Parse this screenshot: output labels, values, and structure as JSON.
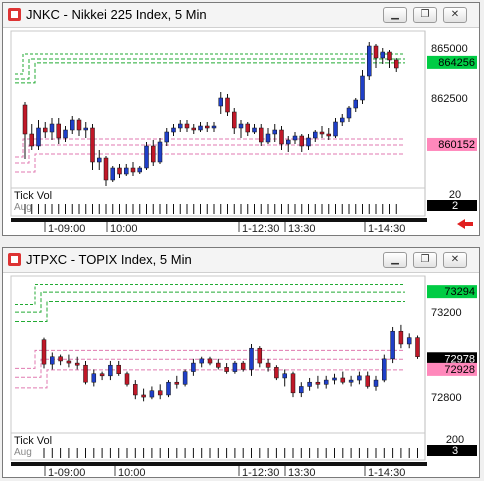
{
  "windows": [
    {
      "title": "JNKC - Nikkei 225 Index, 5 Min",
      "window_buttons": [
        "minimize",
        "restore",
        "close"
      ],
      "price_labels": [
        "865000",
        "862500"
      ],
      "badges": [
        {
          "text": "864256",
          "color": "#00cc44"
        },
        {
          "text": "860152",
          "color": "#ff88bb"
        }
      ],
      "volume_title": "Tick Vol",
      "volume_values": [
        "20",
        "2"
      ],
      "volume_sub": "Aug",
      "time_labels": [
        "1-09:00",
        "10:00",
        "1-12:30",
        "13:30",
        "1-14:30"
      ],
      "has_back_arrow": true
    },
    {
      "title": "JTPXC - TOPIX Index, 5 Min",
      "window_buttons": [
        "minimize",
        "restore",
        "close"
      ],
      "price_labels": [
        "73200",
        "72800"
      ],
      "badges": [
        {
          "text": "73294",
          "color": "#00cc44"
        },
        {
          "text": "72978",
          "color": "#000000"
        },
        {
          "text": "72928",
          "color": "#ff88bb"
        }
      ],
      "volume_title": "Tick Vol",
      "volume_values": [
        "200",
        "3"
      ],
      "volume_sub": "Aug",
      "time_labels": [
        "1-09:00",
        "10:00",
        "1-12:30",
        "13:30",
        "1-14:30"
      ],
      "has_back_arrow": false
    }
  ],
  "chart_data": [
    {
      "type": "candlestick",
      "title": "JNKC - Nikkei 225 Index, 5 Min",
      "y_ticks": [
        865000,
        862500
      ],
      "ylim": [
        858100,
        865850
      ],
      "green_levels": [
        864700,
        864450,
        864256
      ],
      "pink_levels": [
        860450,
        860152,
        859700
      ],
      "candles": [
        [
          862150,
          862300,
          859450,
          860700
        ],
        [
          860700,
          861200,
          859900,
          860100
        ],
        [
          860100,
          861400,
          859900,
          861000
        ],
        [
          861000,
          861300,
          860500,
          860800
        ],
        [
          860800,
          861500,
          860400,
          861200
        ],
        [
          861200,
          861500,
          860200,
          860500
        ],
        [
          860500,
          861100,
          860300,
          860900
        ],
        [
          860900,
          861600,
          860700,
          861400
        ],
        [
          861400,
          861500,
          860600,
          860900
        ],
        [
          860900,
          861300,
          860500,
          861000
        ],
        [
          861000,
          861200,
          858900,
          859300
        ],
        [
          859300,
          859900,
          858900,
          859500
        ],
        [
          859500,
          859600,
          858100,
          858400
        ],
        [
          858400,
          859100,
          858300,
          859000
        ],
        [
          859000,
          859200,
          858500,
          858700
        ],
        [
          858700,
          859200,
          858600,
          859000
        ],
        [
          859000,
          859300,
          858600,
          858800
        ],
        [
          858800,
          859100,
          858700,
          859000
        ],
        [
          859000,
          860300,
          858900,
          860100
        ],
        [
          860100,
          860400,
          859100,
          859300
        ],
        [
          859300,
          860500,
          859200,
          860300
        ],
        [
          860300,
          861000,
          860100,
          860800
        ],
        [
          860800,
          861200,
          860600,
          861000
        ],
        [
          861000,
          861400,
          860800,
          861200
        ],
        [
          861200,
          861400,
          860800,
          861000
        ],
        [
          861000,
          861200,
          860700,
          860900
        ],
        [
          860900,
          861300,
          860800,
          861100
        ],
        [
          861100,
          861300,
          860800,
          861000
        ],
        [
          861000,
          861300,
          860800,
          861100
        ],
        [
          862100,
          862800,
          861700,
          862500
        ],
        [
          862500,
          862700,
          861600,
          861800
        ],
        [
          861800,
          862000,
          860700,
          861000
        ],
        [
          861000,
          861400,
          860500,
          861200
        ],
        [
          861200,
          861300,
          860600,
          860800
        ],
        [
          860800,
          861200,
          860700,
          861000
        ],
        [
          861000,
          861200,
          860100,
          860300
        ],
        [
          860300,
          861000,
          860200,
          860700
        ],
        [
          860700,
          861200,
          860300,
          860900
        ],
        [
          860900,
          861100,
          859900,
          860200
        ],
        [
          860200,
          860600,
          859800,
          860400
        ],
        [
          860400,
          860800,
          860200,
          860600
        ],
        [
          860600,
          860700,
          859800,
          860100
        ],
        [
          860100,
          860700,
          859900,
          860500
        ],
        [
          860500,
          860900,
          860300,
          860800
        ],
        [
          860800,
          861100,
          860500,
          860700
        ],
        [
          860700,
          861000,
          860400,
          860600
        ],
        [
          860600,
          861500,
          860500,
          861300
        ],
        [
          861300,
          861700,
          861100,
          861500
        ],
        [
          861500,
          862100,
          861300,
          862000
        ],
        [
          862000,
          862500,
          861800,
          862400
        ],
        [
          862400,
          863900,
          862200,
          863600
        ],
        [
          863600,
          865300,
          863400,
          865100
        ],
        [
          865100,
          865200,
          864000,
          864500
        ],
        [
          864500,
          865000,
          864200,
          864800
        ],
        [
          864800,
          864900,
          864000,
          864400
        ],
        [
          864400,
          864500,
          863800,
          864000
        ]
      ],
      "volume_ticks": [
        20
      ],
      "x_ticks": [
        "1-09:00",
        "10:00",
        "1-12:30",
        "13:30",
        "1-14:30"
      ]
    },
    {
      "type": "candlestick",
      "title": "JTPXC - TOPIX Index, 5 Min",
      "y_ticks": [
        73200,
        72800
      ],
      "ylim": [
        72645,
        73370
      ],
      "green_levels": [
        73330,
        73294,
        73250
      ],
      "pink_levels": [
        73020,
        72978,
        72928
      ],
      "candles": [
        [
          73070,
          73080,
          72935,
          72955
        ],
        [
          72955,
          73010,
          72930,
          72990
        ],
        [
          72990,
          73000,
          72950,
          72970
        ],
        [
          72970,
          73000,
          72940,
          72960
        ],
        [
          72960,
          72990,
          72930,
          72950
        ],
        [
          72950,
          72970,
          72860,
          72870
        ],
        [
          72870,
          72930,
          72850,
          72910
        ],
        [
          72910,
          72920,
          72880,
          72900
        ],
        [
          72900,
          72970,
          72880,
          72950
        ],
        [
          72950,
          72970,
          72900,
          72910
        ],
        [
          72910,
          72920,
          72850,
          72860
        ],
        [
          72860,
          72880,
          72790,
          72810
        ],
        [
          72810,
          72840,
          72780,
          72800
        ],
        [
          72800,
          72850,
          72790,
          72830
        ],
        [
          72830,
          72860,
          72790,
          72810
        ],
        [
          72810,
          72880,
          72800,
          72870
        ],
        [
          72870,
          72900,
          72840,
          72860
        ],
        [
          72860,
          72930,
          72850,
          72920
        ],
        [
          72920,
          72980,
          72900,
          72960
        ],
        [
          72960,
          72990,
          72940,
          72980
        ],
        [
          72980,
          72990,
          72950,
          72960
        ],
        [
          72960,
          72980,
          72930,
          72940
        ],
        [
          72940,
          72960,
          72910,
          72920
        ],
        [
          72920,
          72970,
          72910,
          72960
        ],
        [
          72960,
          72970,
          72920,
          72930
        ],
        [
          72930,
          73050,
          72900,
          73030
        ],
        [
          73030,
          73040,
          72940,
          72960
        ],
        [
          72960,
          72980,
          72920,
          72940
        ],
        [
          72940,
          72950,
          72880,
          72890
        ],
        [
          72890,
          72930,
          72850,
          72910
        ],
        [
          72910,
          72920,
          72800,
          72820
        ],
        [
          72820,
          72870,
          72800,
          72850
        ],
        [
          72850,
          72890,
          72830,
          72870
        ],
        [
          72870,
          72900,
          72840,
          72860
        ],
        [
          72860,
          72900,
          72840,
          72880
        ],
        [
          72880,
          72910,
          72860,
          72890
        ],
        [
          72890,
          72920,
          72860,
          72870
        ],
        [
          72870,
          72900,
          72850,
          72880
        ],
        [
          72880,
          72920,
          72860,
          72900
        ],
        [
          72900,
          72920,
          72840,
          72850
        ],
        [
          72850,
          72900,
          72830,
          72880
        ],
        [
          72880,
          73000,
          72870,
          72980
        ],
        [
          72980,
          73130,
          72960,
          73110
        ],
        [
          73110,
          73140,
          73030,
          73050
        ],
        [
          73050,
          73100,
          73030,
          73080
        ],
        [
          73080,
          73090,
          72980,
          72990
        ]
      ],
      "volume_ticks": [
        200
      ],
      "x_ticks": [
        "1-09:00",
        "10:00",
        "1-12:30",
        "13:30",
        "1-14:30"
      ]
    }
  ]
}
